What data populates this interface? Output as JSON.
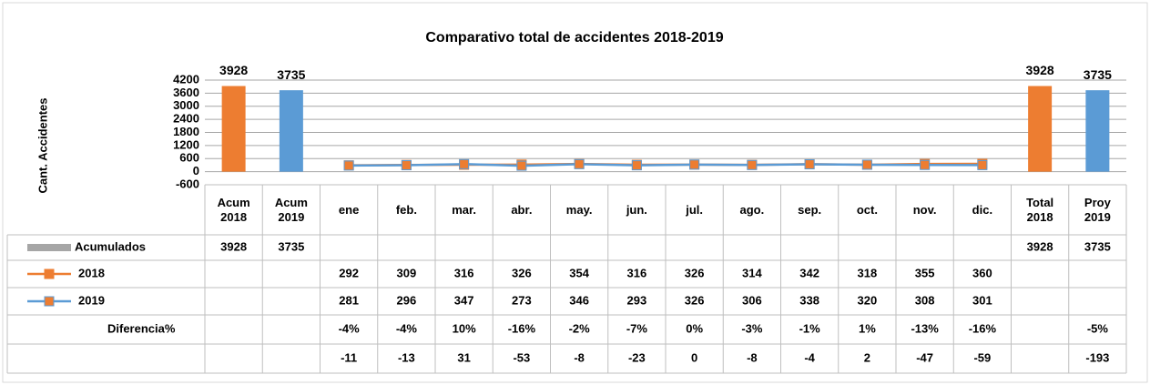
{
  "chart_data": {
    "type": "combo",
    "title": "Comparativo total de accidentes 2018-2019",
    "y_label": "Cant. Accidentes",
    "categories": [
      "Acum 2018",
      "Acum 2019",
      "ene",
      "feb.",
      "mar.",
      "abr.",
      "may.",
      "jun.",
      "jul.",
      "ago.",
      "sep.",
      "oct.",
      "nov.",
      "dic.",
      "Total 2018",
      "Proy 2019"
    ],
    "ylim": [
      -600,
      4200
    ],
    "yticks": [
      -600,
      0,
      600,
      1200,
      1800,
      2400,
      3000,
      3600,
      4200
    ],
    "grid": true,
    "series": [
      {
        "name": "Acumulados",
        "type": "bar",
        "color": "#a6a6a6",
        "bar_colors": [
          "#ed7d31",
          "#5b9bd5",
          null,
          null,
          null,
          null,
          null,
          null,
          null,
          null,
          null,
          null,
          null,
          null,
          "#ed7d31",
          "#5b9bd5"
        ],
        "values": [
          3928,
          3735,
          null,
          null,
          null,
          null,
          null,
          null,
          null,
          null,
          null,
          null,
          null,
          null,
          3928,
          3735
        ]
      },
      {
        "name": "2018",
        "type": "line",
        "color": "#ed7d31",
        "marker_color": "#ed7d31",
        "values": [
          null,
          null,
          292,
          309,
          316,
          326,
          354,
          316,
          326,
          314,
          342,
          318,
          355,
          360,
          null,
          null
        ]
      },
      {
        "name": "2019",
        "type": "line",
        "color": "#5b9bd5",
        "marker_color": "#ed7d31",
        "values": [
          null,
          null,
          281,
          296,
          347,
          273,
          346,
          293,
          326,
          306,
          338,
          320,
          308,
          301,
          null,
          null
        ]
      }
    ],
    "table_rows": [
      {
        "name": "Diferencia%",
        "values": [
          null,
          null,
          -4,
          -4,
          10,
          -16,
          -2,
          -7,
          0,
          -3,
          -1,
          1,
          -13,
          -16,
          null,
          -5
        ],
        "value_labels": [
          null,
          null,
          "-4%",
          "-4%",
          "10%",
          "-16%",
          "-2%",
          "-7%",
          "0%",
          "-3%",
          "-1%",
          "1%",
          "-13%",
          "-16%",
          null,
          "-5%"
        ]
      },
      {
        "values": [
          null,
          null,
          -11,
          -13,
          31,
          -53,
          -8,
          -23,
          0,
          -8,
          -4,
          2,
          -47,
          -59,
          null,
          -193
        ]
      }
    ]
  }
}
